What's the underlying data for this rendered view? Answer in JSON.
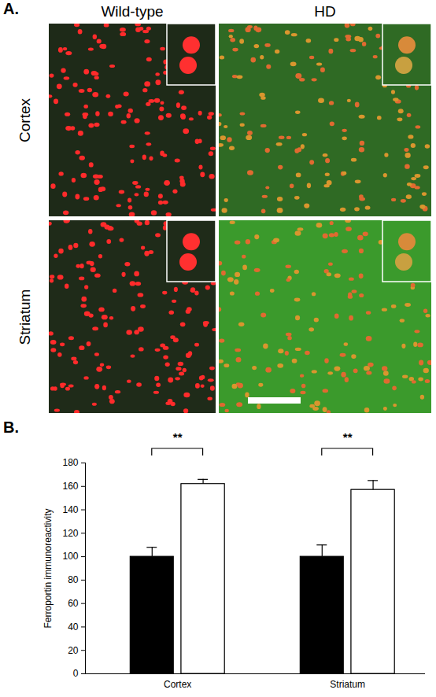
{
  "figure": {
    "panel_label": "A.",
    "rows": [
      "Cortex",
      "Striatum"
    ]
  },
  "chart_data": {
    "type": "bar",
    "panel_label": "B.",
    "y_label": "Ferroportin immunoreactivity",
    "categories": [
      "Cortex",
      "Striatum"
    ],
    "series": [
      {
        "name": "Wild-type",
        "color": "#000000",
        "values": [
          100,
          100
        ],
        "errors": [
          8,
          10
        ]
      },
      {
        "name": "HD",
        "color": "#ffffff",
        "values": [
          162,
          157
        ],
        "errors": [
          4,
          8
        ]
      }
    ],
    "ylim": [
      0,
      180
    ],
    "yticks": [
      0,
      20,
      40,
      60,
      80,
      100,
      120,
      140,
      160,
      180
    ],
    "annotations": [
      {
        "category": "Cortex",
        "text": "**"
      },
      {
        "category": "Striatum",
        "text": "**"
      }
    ]
  }
}
